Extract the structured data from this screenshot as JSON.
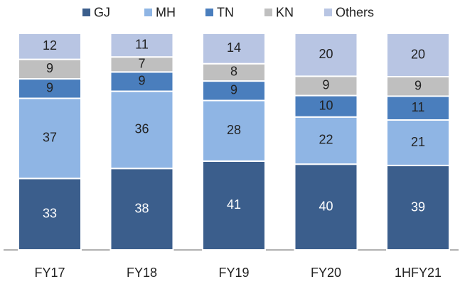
{
  "chart_data": {
    "type": "stacked_bar",
    "categories": [
      "FY17",
      "FY18",
      "FY19",
      "FY20",
      "1HFY21"
    ],
    "series": [
      {
        "name": "GJ",
        "color": "#3b5e8c",
        "values": [
          33,
          38,
          41,
          40,
          39
        ]
      },
      {
        "name": "MH",
        "color": "#8fb5e4",
        "values": [
          37,
          36,
          28,
          22,
          21
        ]
      },
      {
        "name": "TN",
        "color": "#4a7ebd",
        "values": [
          9,
          9,
          9,
          10,
          11
        ]
      },
      {
        "name": "KN",
        "color": "#bfbfbf",
        "values": [
          9,
          7,
          8,
          9,
          9
        ]
      },
      {
        "name": "Others",
        "color": "#b8c5e3",
        "values": [
          12,
          11,
          14,
          20,
          20
        ]
      }
    ],
    "legend": "top"
  }
}
